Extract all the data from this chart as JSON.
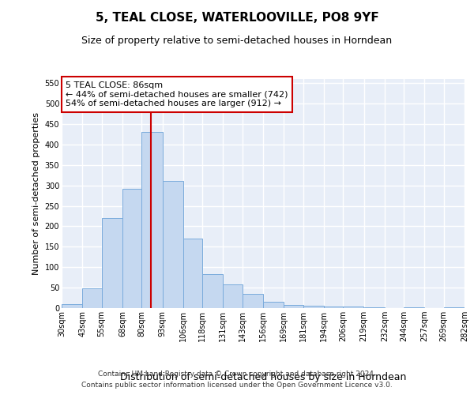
{
  "title": "5, TEAL CLOSE, WATERLOOVILLE, PO8 9YF",
  "subtitle": "Size of property relative to semi-detached houses in Horndean",
  "xlabel": "Distribution of semi-detached houses by size in Horndean",
  "ylabel": "Number of semi-detached properties",
  "footnote1": "Contains HM Land Registry data © Crown copyright and database right 2024.",
  "footnote2": "Contains public sector information licensed under the Open Government Licence v3.0.",
  "annotation_line1": "5 TEAL CLOSE: 86sqm",
  "annotation_line2": "← 44% of semi-detached houses are smaller (742)",
  "annotation_line3": "54% of semi-detached houses are larger (912) →",
  "bar_color": "#c5d8f0",
  "bar_edge_color": "#7aabdc",
  "marker_value": 86,
  "bin_edges": [
    30,
    43,
    55,
    68,
    80,
    93,
    106,
    118,
    131,
    143,
    156,
    169,
    181,
    194,
    206,
    219,
    232,
    244,
    257,
    269,
    282
  ],
  "bin_labels": [
    "30sqm",
    "43sqm",
    "55sqm",
    "68sqm",
    "80sqm",
    "93sqm",
    "106sqm",
    "118sqm",
    "131sqm",
    "143sqm",
    "156sqm",
    "169sqm",
    "181sqm",
    "194sqm",
    "206sqm",
    "219sqm",
    "232sqm",
    "244sqm",
    "257sqm",
    "269sqm",
    "282sqm"
  ],
  "bar_heights": [
    10,
    48,
    220,
    291,
    430,
    311,
    169,
    83,
    57,
    35,
    16,
    8,
    5,
    3,
    3,
    2,
    0,
    2,
    0,
    2
  ],
  "ylim": [
    0,
    560
  ],
  "yticks": [
    0,
    50,
    100,
    150,
    200,
    250,
    300,
    350,
    400,
    450,
    500,
    550
  ],
  "background_color": "#ffffff",
  "plot_bg_color": "#e8eef8",
  "grid_color": "#ffffff",
  "marker_color": "#cc0000",
  "box_color": "#ffffff",
  "box_edge_color": "#cc0000",
  "title_fontsize": 11,
  "subtitle_fontsize": 9,
  "ylabel_fontsize": 8,
  "xlabel_fontsize": 9,
  "tick_fontsize": 7,
  "footnote_fontsize": 6.5,
  "annotation_fontsize": 8
}
